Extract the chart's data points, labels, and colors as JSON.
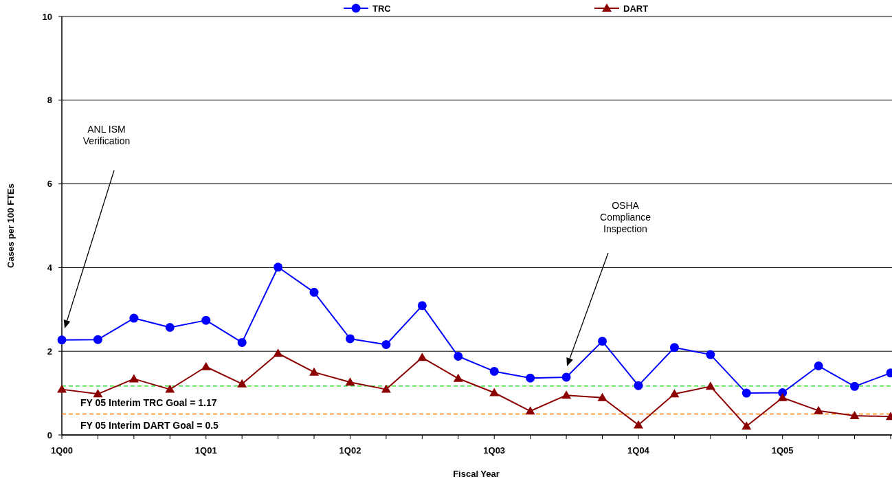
{
  "chart_data": {
    "type": "line",
    "xlabel": "Fiscal Year",
    "ylabel": "Cases per 100 FTEs",
    "categories": [
      "1Q00",
      null,
      null,
      null,
      "1Q01",
      null,
      null,
      null,
      "1Q02",
      null,
      null,
      null,
      "1Q03",
      null,
      null,
      null,
      "1Q04",
      null,
      null,
      null,
      "1Q05",
      null,
      null,
      null
    ],
    "series": [
      {
        "name": "TRC",
        "color": "#0000ff",
        "marker": "circle",
        "values": [
          2.27,
          2.28,
          2.79,
          2.57,
          2.74,
          2.21,
          4.01,
          3.41,
          2.3,
          2.16,
          3.09,
          1.88,
          1.52,
          1.36,
          1.38,
          2.24,
          1.18,
          2.09,
          1.92,
          1.0,
          1.01,
          1.65,
          1.16,
          1.48
        ]
      },
      {
        "name": "DART",
        "color": "#8b0000",
        "marker": "triangle",
        "values": [
          1.09,
          0.98,
          1.34,
          1.09,
          1.63,
          1.22,
          1.95,
          1.5,
          1.26,
          1.09,
          1.85,
          1.35,
          1.01,
          0.57,
          0.95,
          0.89,
          0.24,
          0.98,
          1.16,
          0.21,
          0.89,
          0.58,
          0.46,
          0.44
        ]
      }
    ],
    "ylim": [
      0,
      10
    ],
    "yticks": [
      0,
      2,
      4,
      6,
      8,
      10
    ],
    "grid": "y",
    "legend": "top",
    "ref_lines": [
      {
        "axis": "y",
        "value": 1.17,
        "label": "FY 05 Interim TRC Goal = 1.17",
        "color": "#33dd33",
        "line_style": "dashed"
      },
      {
        "axis": "y",
        "value": 0.5,
        "label": "FY 05 Interim DART Goal = 0.5",
        "color": "#ff8000",
        "line_style": "dashed"
      }
    ],
    "annotations": [
      "ANL ISM Verification",
      "OSHA Compliance Inspection"
    ]
  }
}
